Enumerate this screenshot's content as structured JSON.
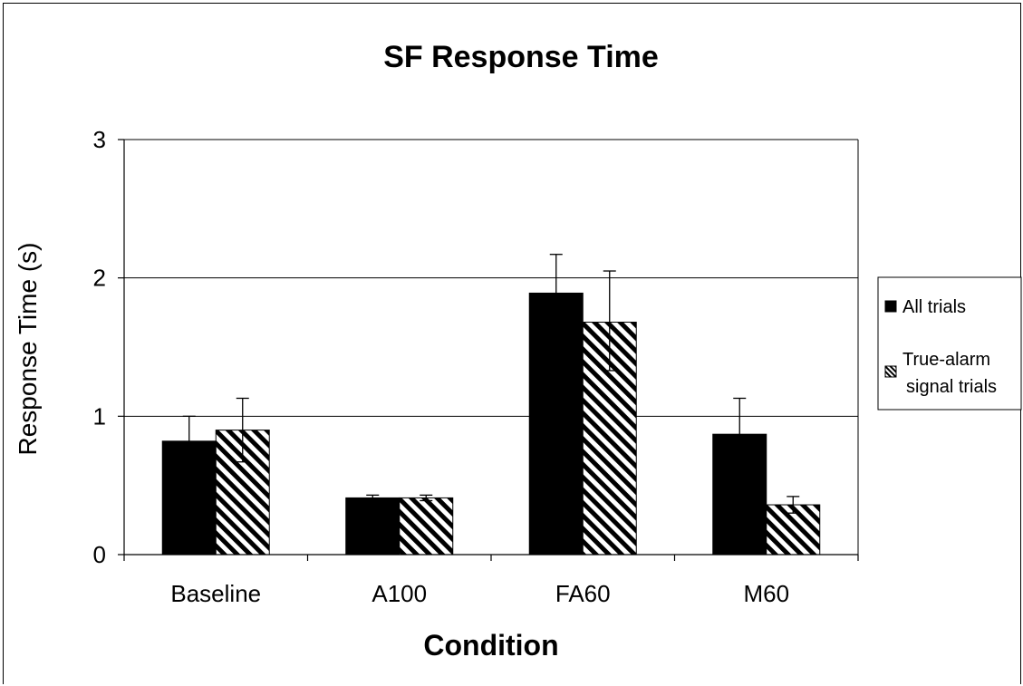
{
  "chart_data": {
    "type": "bar",
    "title": "SF Response Time",
    "xlabel": "Condition",
    "ylabel": "Response Time (s)",
    "categories": [
      "Baseline",
      "A100",
      "FA60",
      "M60"
    ],
    "ylim": [
      0,
      3
    ],
    "yticks": [
      0,
      1,
      2,
      3
    ],
    "grid": true,
    "legend_position": "right",
    "series": [
      {
        "name": "All trials",
        "legend_label": [
          "All trials"
        ],
        "values": [
          0.82,
          0.41,
          1.89,
          0.87
        ],
        "error_plus": [
          0.18,
          0.02,
          0.28,
          0.26
        ],
        "error_minus": [
          0.18,
          0.02,
          0.28,
          0.26
        ],
        "fill": "#000000"
      },
      {
        "name": "True-alarm signal trials",
        "legend_label": [
          "True-alarm",
          "signal trials"
        ],
        "values": [
          0.9,
          0.41,
          1.68,
          0.36
        ],
        "error_plus": [
          0.23,
          0.02,
          0.37,
          0.06
        ],
        "error_minus": [
          0.23,
          0.02,
          0.35,
          0.06
        ],
        "fill": "hatch"
      }
    ]
  }
}
